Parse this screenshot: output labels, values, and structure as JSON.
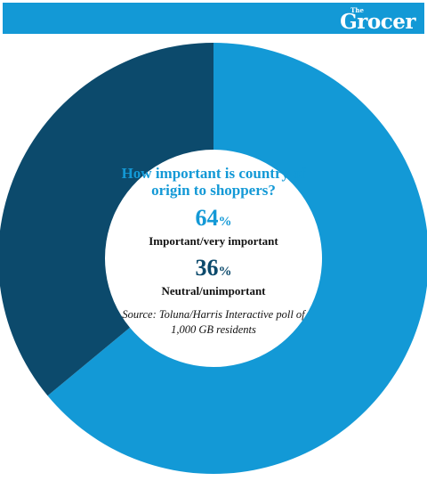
{
  "brand": {
    "the": "The",
    "name": "Grocer"
  },
  "colors": {
    "brand_blue": "#1399d6",
    "dark_blue": "#0c4a6c"
  },
  "chart_data": {
    "type": "pie",
    "title": "How important is country of origin to shoppers?",
    "categories": [
      "Important/very important",
      "Neutral/unimportant"
    ],
    "values": [
      64,
      36
    ],
    "value_labels": [
      "64",
      "36"
    ],
    "unit": "%",
    "colors": [
      "#1399d6",
      "#0c4a6c"
    ],
    "donut": true,
    "source": "Source: Toluna/Harris Interactive poll of 1,000 GB residents"
  }
}
